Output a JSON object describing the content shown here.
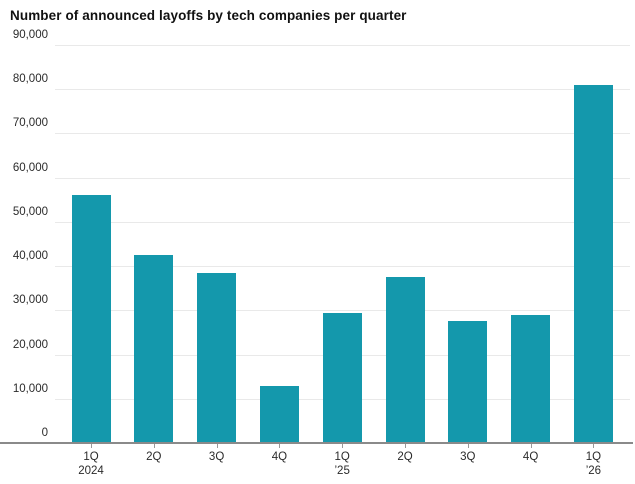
{
  "chart_data": {
    "type": "bar",
    "title": "Number of announced layoffs by tech companies per quarter",
    "categories": [
      {
        "quarter": "1Q",
        "year": "2024"
      },
      {
        "quarter": "2Q",
        "year": ""
      },
      {
        "quarter": "3Q",
        "year": ""
      },
      {
        "quarter": "4Q",
        "year": ""
      },
      {
        "quarter": "1Q",
        "year": "’25"
      },
      {
        "quarter": "2Q",
        "year": ""
      },
      {
        "quarter": "3Q",
        "year": ""
      },
      {
        "quarter": "4Q",
        "year": ""
      },
      {
        "quarter": "1Q",
        "year": "’26"
      }
    ],
    "values": [
      56000,
      42500,
      38500,
      13000,
      29500,
      37500,
      27500,
      29000,
      81000
    ],
    "xlabel": "",
    "ylabel": "",
    "ylim": [
      0,
      90000
    ],
    "ytick_interval": 10000,
    "ytick_labels": [
      "0",
      "10,000",
      "20,000",
      "30,000",
      "40,000",
      "50,000",
      "60,000",
      "70,000",
      "80,000",
      "90,000"
    ],
    "grid": "horizontal",
    "legend": "none",
    "colors": {
      "bar": "#1498ac",
      "gridline": "#e9e9e9",
      "axis_line": "#8a8a8a",
      "tick_text": "#2b2b2b",
      "title_text": "#111111"
    }
  }
}
